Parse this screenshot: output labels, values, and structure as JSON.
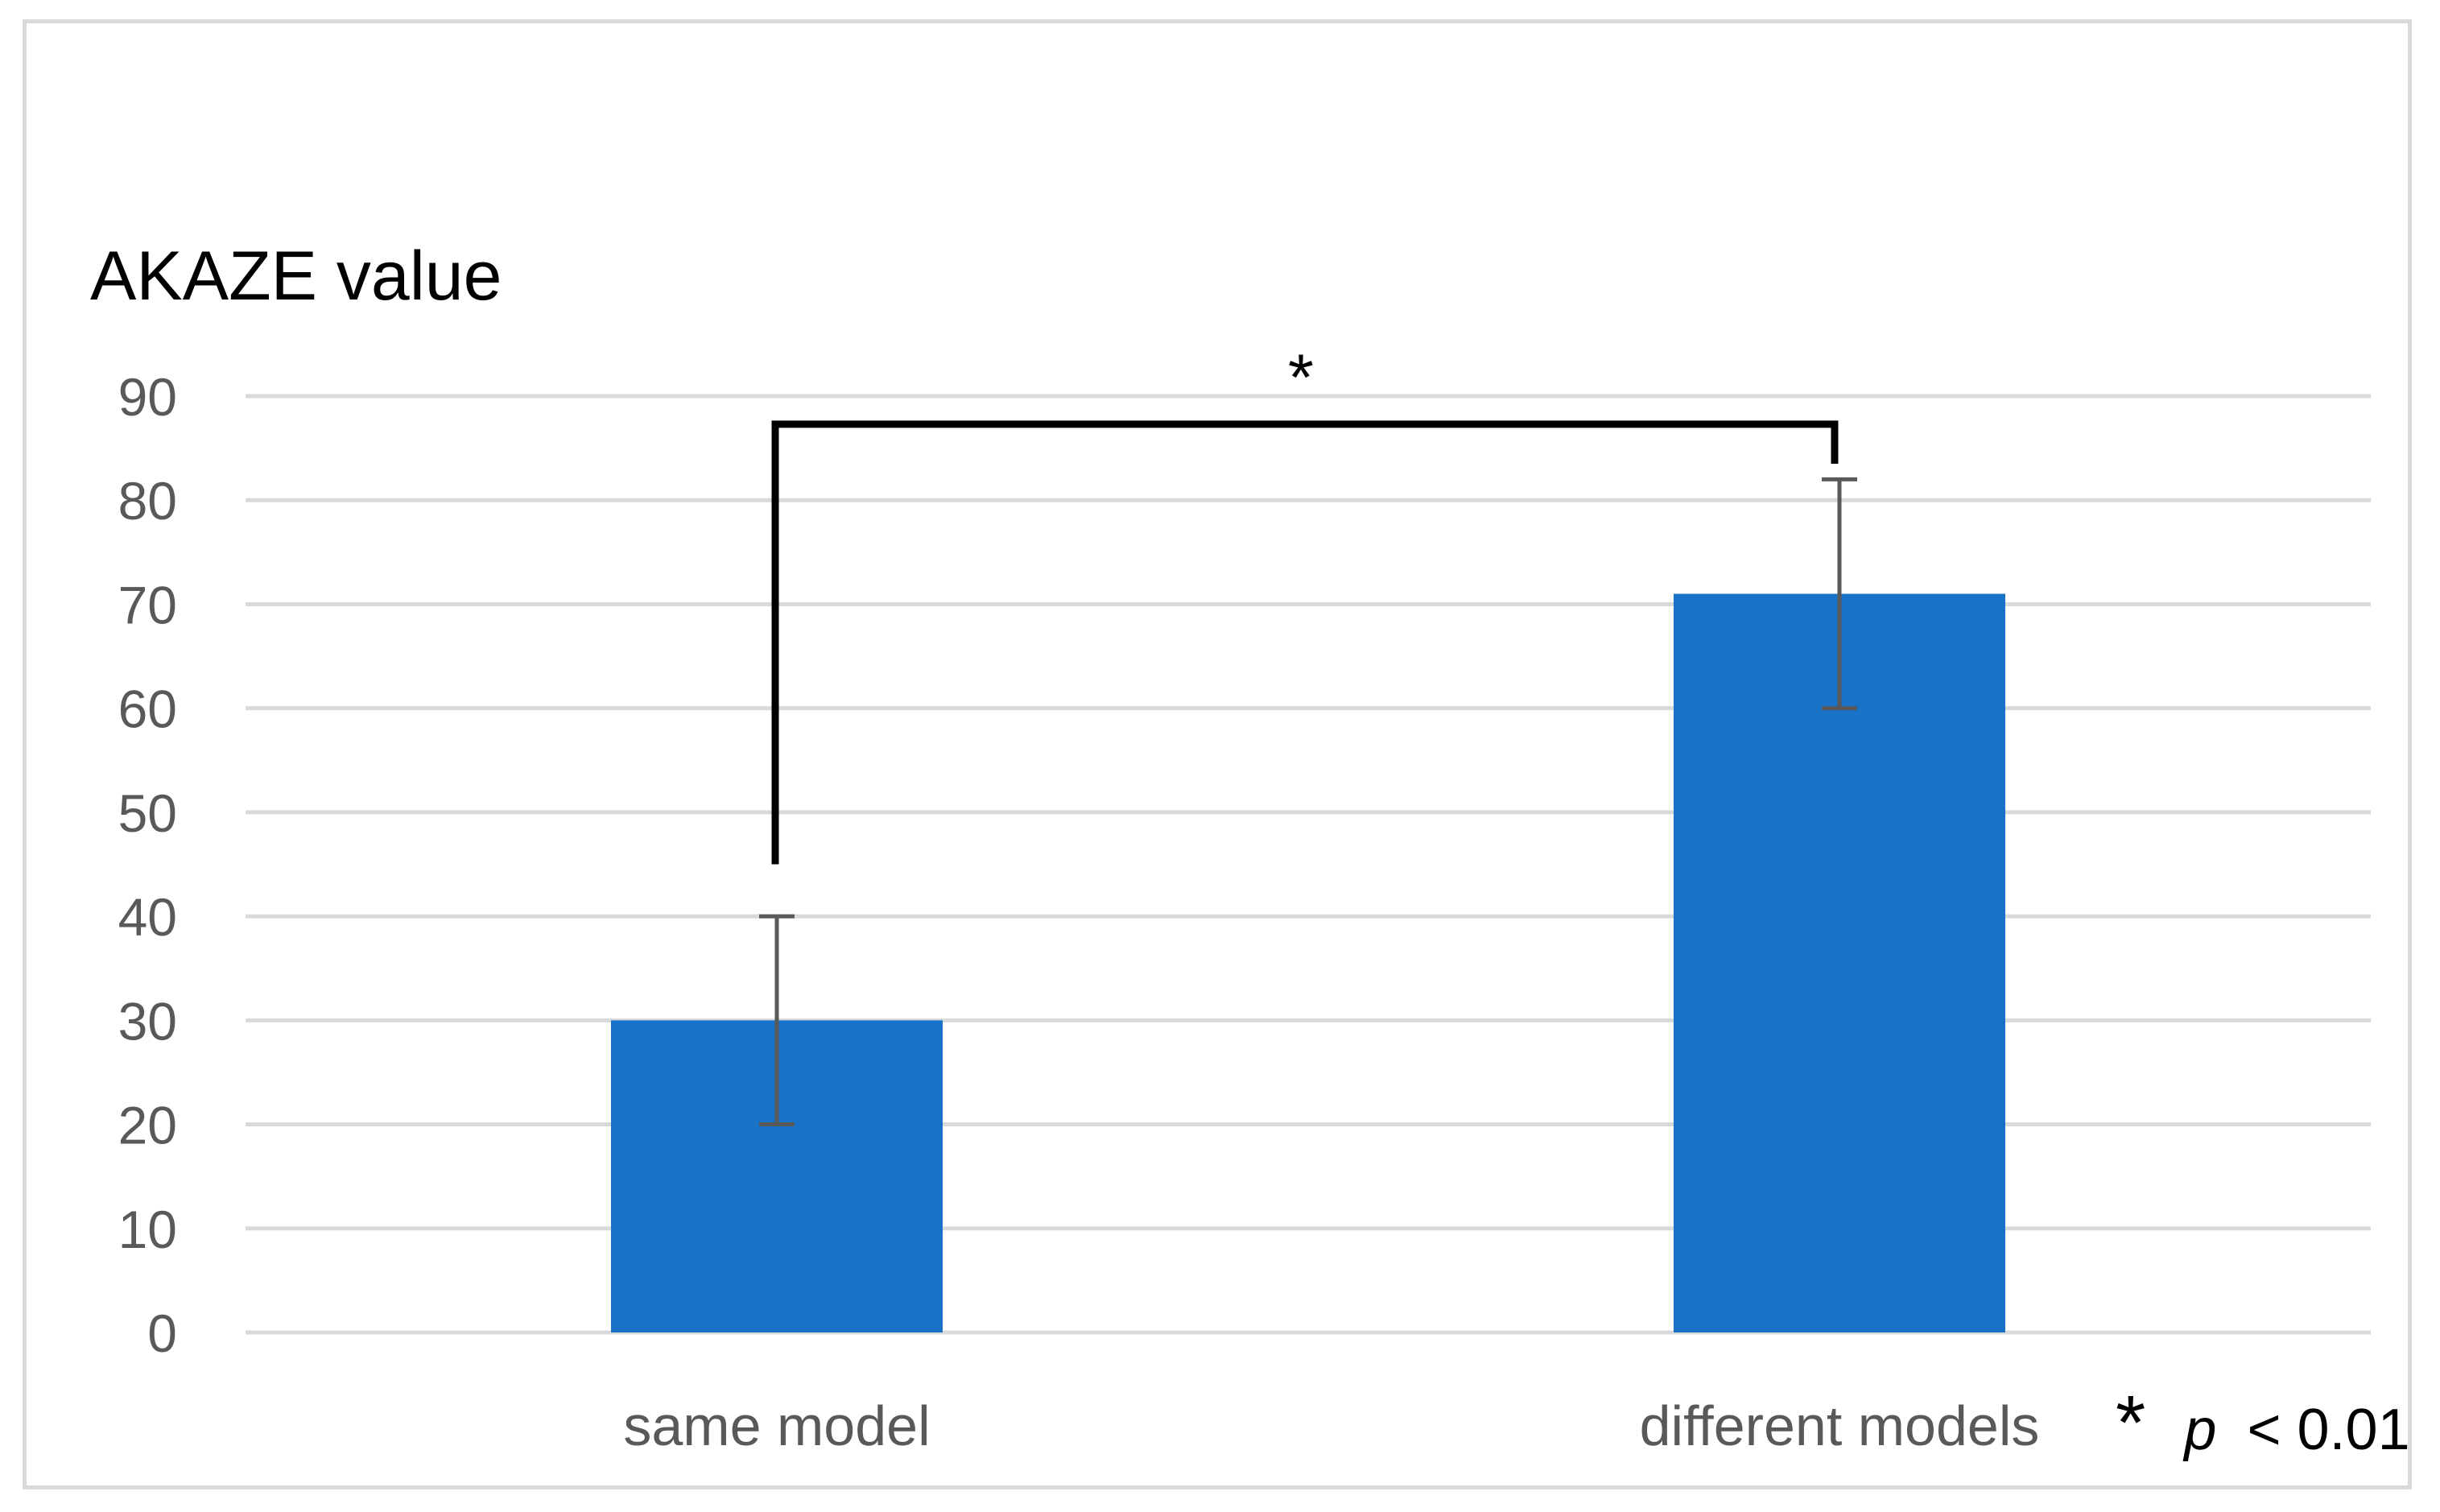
{
  "chart_data": {
    "type": "bar",
    "ylabel": "AKAZE value",
    "categories": [
      "same model",
      "different models"
    ],
    "values": [
      30,
      71
    ],
    "errors": [
      10,
      11
    ],
    "ylim": [
      0,
      90
    ],
    "yticks": [
      0,
      10,
      20,
      30,
      40,
      50,
      60,
      70,
      80,
      90
    ],
    "grid": true,
    "bar_color": "#1872c8",
    "error_color": "#595959",
    "significance": {
      "marker": "*",
      "between": [
        0,
        1
      ],
      "note_star": "*",
      "note_p": "p",
      "note_rest": "< 0.01"
    }
  }
}
